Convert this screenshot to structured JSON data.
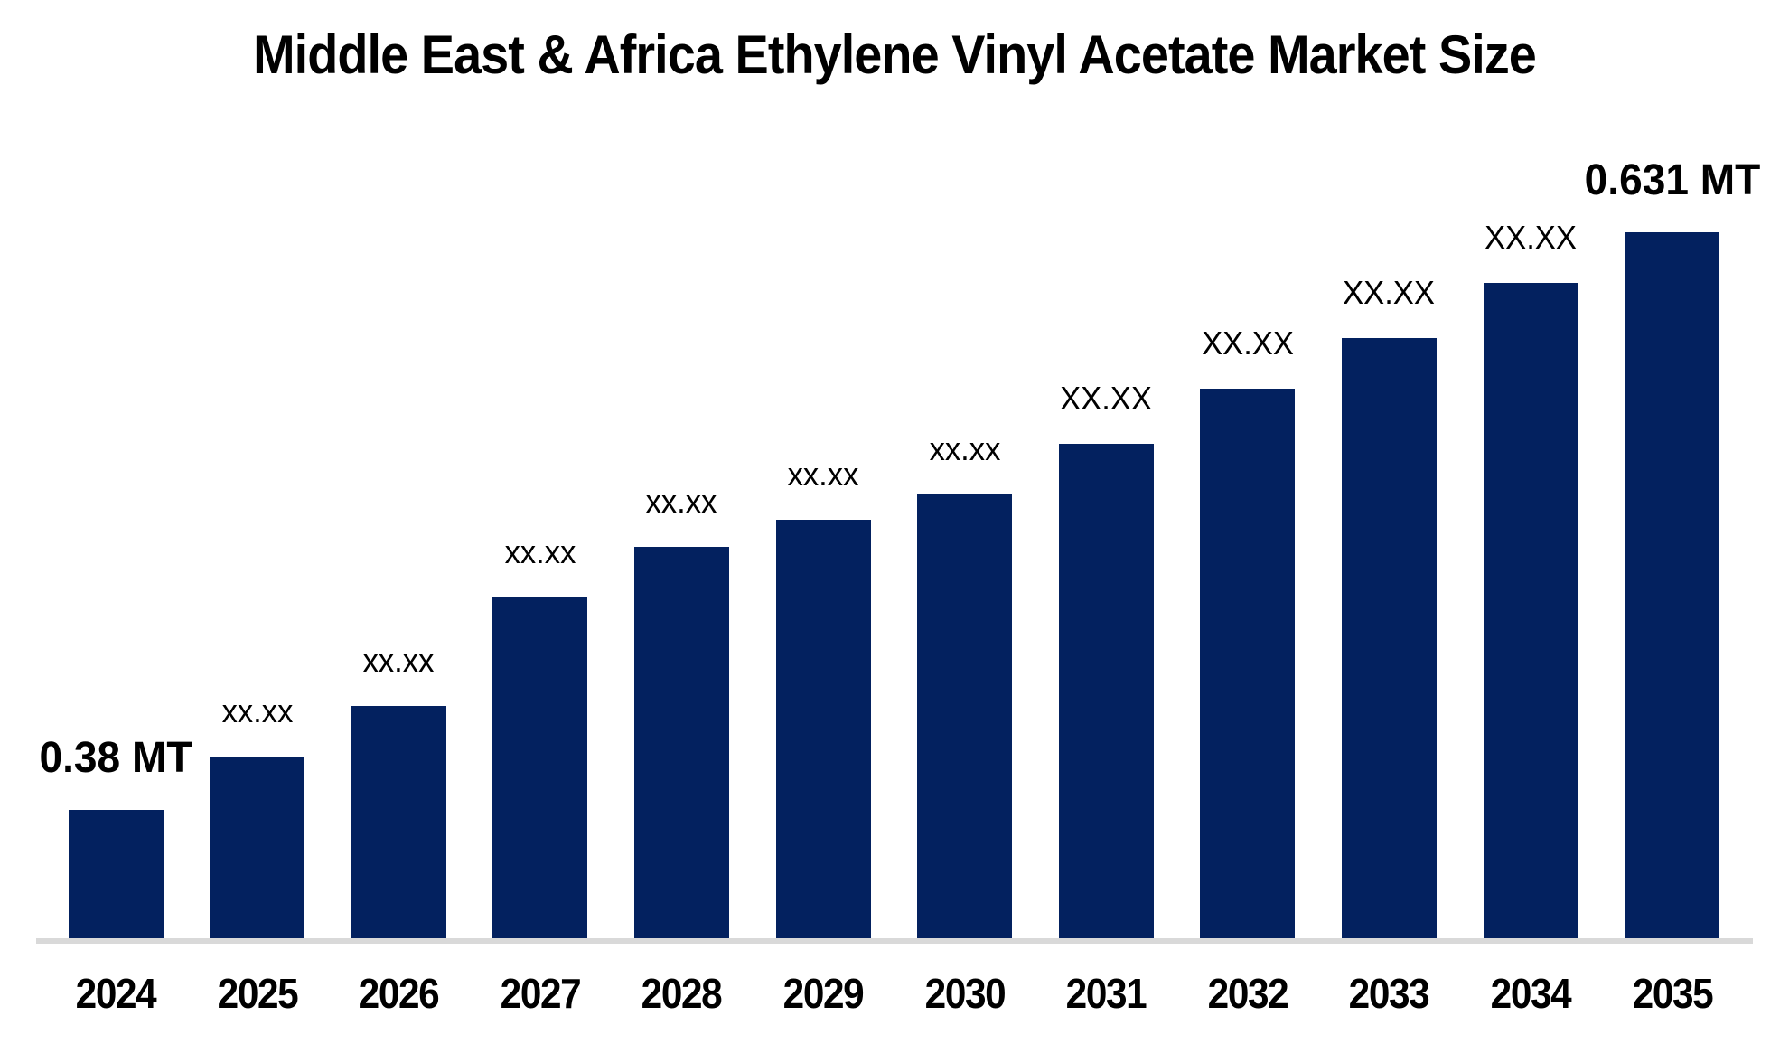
{
  "chart_data": {
    "type": "bar",
    "title": "Middle East & Africa Ethylene Vinyl Acetate Market Size",
    "unit": "MT",
    "categories": [
      "2024",
      "2025",
      "2026",
      "2027",
      "2028",
      "2029",
      "2030",
      "2031",
      "2032",
      "2033",
      "2034",
      "2035"
    ],
    "values": [
      0.38,
      0.403,
      0.425,
      0.472,
      0.494,
      0.506,
      0.517,
      0.539,
      0.563,
      0.585,
      0.609,
      0.631
    ],
    "bar_labels": [
      "0.38 MT",
      "xx.xx",
      "xx.xx",
      "xx.xx",
      "xx.xx",
      "xx.xx",
      "xx.xx",
      "XX.XX",
      "XX.XX",
      "XX.XX",
      "XX.XX",
      "0.631 MT"
    ],
    "label_emphasis": [
      true,
      false,
      false,
      false,
      false,
      false,
      false,
      false,
      false,
      false,
      false,
      true
    ],
    "known_values": {
      "2024": "0.38 MT",
      "2035": "0.631 MT"
    },
    "xlabel": "",
    "ylabel": "",
    "ylim": [
      0.324,
      0.66
    ],
    "grid": false,
    "legend": false,
    "colors": {
      "bar": "#03215F",
      "axis_line": "#D9D9D9",
      "text": "#000000"
    }
  }
}
